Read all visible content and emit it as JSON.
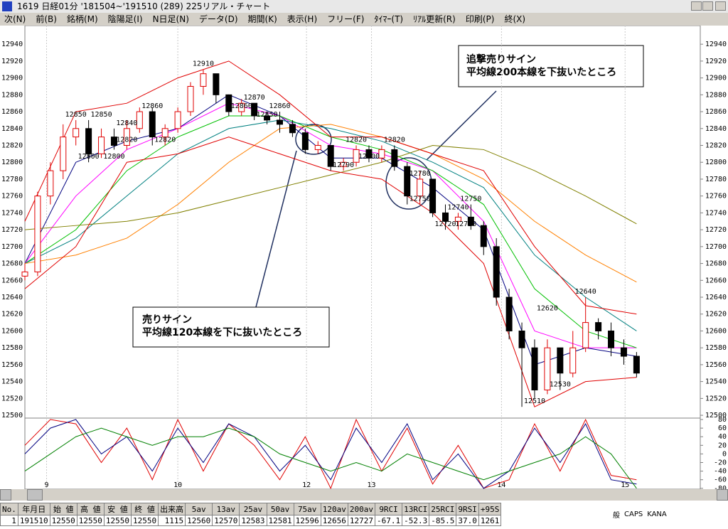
{
  "window": {
    "title": "1619 日経01分 '181504~'191510 (289)  225リアル・チャート"
  },
  "menu": [
    "次(N)",
    "前(B)",
    "銘柄(M)",
    "陰陽足(I)",
    "N日足(N)",
    "データ(D)",
    "期間(K)",
    "表示(H)",
    "フリー(F)",
    "ﾀｲﾏｰ(T)",
    "ﾘｱﾙ更新(R)",
    "印刷(P)",
    "終(X)"
  ],
  "chart_data": [
    {
      "type": "candlestick",
      "xlim": [
        0,
        53
      ],
      "xticks": [
        {
          "value": 1.7,
          "label": "9"
        },
        {
          "value": 12,
          "label": "10"
        },
        {
          "value": 22.1,
          "label": "12"
        },
        {
          "value": 27.2,
          "label": "13"
        },
        {
          "value": 37.4,
          "label": "14"
        },
        {
          "value": 47.1,
          "label": "15"
        }
      ],
      "ylim": [
        12495,
        12957
      ],
      "yticks": [
        12500,
        12520,
        12540,
        12560,
        12580,
        12600,
        12620,
        12640,
        12660,
        12680,
        12700,
        12720,
        12740,
        12760,
        12780,
        12800,
        12820,
        12840,
        12860,
        12880,
        12900,
        12920,
        12940
      ],
      "grid": "x",
      "up_color": "#e00000",
      "down_color": "#000000",
      "open": [
        12665,
        12670,
        12760,
        12790,
        12830,
        12840,
        12810,
        12830,
        12820,
        12840,
        12860,
        12830,
        12840,
        12860,
        12890,
        12905,
        12880,
        12860,
        12870,
        12855,
        12850,
        12845,
        12835,
        12815,
        12820,
        12795,
        12800,
        12815,
        12805,
        12815,
        12795,
        12760,
        12780,
        12740,
        12730,
        12735,
        12725,
        12700,
        12640,
        12600,
        12580,
        12530,
        12580,
        12550,
        12580,
        12610,
        12600,
        12580,
        12570
      ],
      "high": [
        12680,
        12765,
        12800,
        12845,
        12850,
        12850,
        12840,
        12840,
        12850,
        12865,
        12865,
        12845,
        12865,
        12895,
        12910,
        12905,
        12880,
        12875,
        12870,
        12860,
        12860,
        12850,
        12840,
        12825,
        12820,
        12805,
        12820,
        12820,
        12820,
        12820,
        12800,
        12790,
        12780,
        12750,
        12740,
        12750,
        12730,
        12710,
        12650,
        12610,
        12590,
        12590,
        12580,
        12600,
        12640,
        12615,
        12610,
        12590,
        12575
      ],
      "low": [
        12660,
        12665,
        12750,
        12780,
        12820,
        12800,
        12805,
        12815,
        12815,
        12835,
        12820,
        12820,
        12835,
        12855,
        12880,
        12870,
        12855,
        12855,
        12850,
        12845,
        12835,
        12830,
        12810,
        12810,
        12790,
        12790,
        12795,
        12800,
        12800,
        12790,
        12750,
        12750,
        12735,
        12720,
        12720,
        12720,
        12690,
        12630,
        12590,
        12510,
        12520,
        12525,
        12530,
        12545,
        12575,
        12590,
        12570,
        12560,
        12545
      ],
      "close": [
        12670,
        12760,
        12790,
        12830,
        12840,
        12810,
        12830,
        12820,
        12840,
        12860,
        12830,
        12840,
        12860,
        12890,
        12905,
        12880,
        12860,
        12870,
        12855,
        12850,
        12845,
        12835,
        12815,
        12820,
        12795,
        12800,
        12815,
        12805,
        12815,
        12795,
        12760,
        12780,
        12740,
        12730,
        12735,
        12725,
        12700,
        12640,
        12600,
        12580,
        12530,
        12580,
        12550,
        12580,
        12610,
        12600,
        12580,
        12570,
        12550
      ],
      "line_x": [
        0,
        4,
        8,
        12,
        16,
        20,
        24,
        28,
        32,
        36,
        40,
        44,
        48
      ],
      "series": [
        {
          "color": "#000080",
          "values": [
            12680,
            12800,
            12825,
            12840,
            12880,
            12855,
            12805,
            12805,
            12770,
            12720,
            12560,
            12580,
            12570
          ]
        },
        {
          "color": "#ff00ff",
          "values": [
            12680,
            12760,
            12815,
            12840,
            12870,
            12855,
            12820,
            12810,
            12790,
            12730,
            12600,
            12580,
            12580
          ]
        },
        {
          "color": "#00c000",
          "values": [
            12680,
            12720,
            12790,
            12830,
            12855,
            12855,
            12830,
            12815,
            12790,
            12750,
            12650,
            12600,
            12580
          ]
        },
        {
          "color": "#008080",
          "values": [
            12680,
            12710,
            12760,
            12810,
            12840,
            12850,
            12840,
            12825,
            12800,
            12770,
            12690,
            12640,
            12600
          ]
        },
        {
          "color": "#ff8000",
          "values": [
            12680,
            12690,
            12710,
            12750,
            12800,
            12840,
            12845,
            12830,
            12810,
            12780,
            12730,
            12690,
            12658
          ]
        },
        {
          "color": "#808000",
          "values": [
            12720,
            12725,
            12730,
            12740,
            12755,
            12770,
            12785,
            12800,
            12820,
            12815,
            12790,
            12760,
            12727
          ]
        },
        {
          "color": "#e00000",
          "values": [
            12730,
            12860,
            12870,
            12900,
            12920,
            12880,
            12830,
            12830,
            12810,
            12790,
            12700,
            12630,
            12620
          ]
        },
        {
          "color": "#e00000",
          "values": [
            12650,
            12700,
            12800,
            12810,
            12830,
            12810,
            12790,
            12780,
            12740,
            12680,
            12510,
            12540,
            12545
          ]
        }
      ],
      "price_labels": [
        {
          "index": 14,
          "value": 12910
        },
        {
          "index": 18,
          "value": 12870
        },
        {
          "index": 10,
          "value": 12860
        },
        {
          "index": 4,
          "value": 12850
        },
        {
          "index": 6,
          "value": 12850
        },
        {
          "index": 8,
          "value": 12840
        },
        {
          "index": 8,
          "value": 12820
        },
        {
          "index": 11,
          "value": 12820
        },
        {
          "index": 5,
          "value": 12800
        },
        {
          "index": 7,
          "value": 12800
        },
        {
          "index": 17,
          "value": 12860
        },
        {
          "index": 20,
          "value": 12860
        },
        {
          "index": 19,
          "value": 12850
        },
        {
          "index": 25,
          "value": 12790
        },
        {
          "index": 26,
          "value": 12820
        },
        {
          "index": 29,
          "value": 12820
        },
        {
          "index": 27,
          "value": 12800
        },
        {
          "index": 31,
          "value": 12780
        },
        {
          "index": 31,
          "value": 12750
        },
        {
          "index": 34,
          "value": 12740
        },
        {
          "index": 35,
          "value": 12750
        },
        {
          "index": 33,
          "value": 12720
        },
        {
          "index": 34.6,
          "value": 12720
        },
        {
          "index": 44,
          "value": 12640
        },
        {
          "index": 41,
          "value": 12620
        },
        {
          "index": 42,
          "value": 12530
        },
        {
          "index": 40,
          "value": 12510
        }
      ],
      "annotations": [
        {
          "lines": [
            "追撃売りサイン",
            "平均線200本線を下抜いたところ"
          ]
        },
        {
          "lines": [
            "売りサイン",
            "平均線120本線を下に抜いたところ"
          ]
        }
      ]
    },
    {
      "type": "line",
      "xlim": [
        0,
        53
      ],
      "ylim": [
        -82,
        85
      ],
      "yticks": [
        -80,
        -60,
        -40,
        -20,
        0,
        20,
        40,
        60,
        80
      ],
      "x": [
        0,
        2,
        4,
        6,
        8,
        10,
        12,
        14,
        16,
        18,
        20,
        22,
        24,
        26,
        28,
        30,
        32,
        34,
        36,
        38,
        40,
        42,
        44,
        46,
        48
      ],
      "series": [
        {
          "color": "#e00000",
          "values": [
            20,
            80,
            70,
            -20,
            60,
            -60,
            80,
            -40,
            70,
            20,
            -60,
            40,
            -80,
            80,
            -40,
            60,
            -70,
            20,
            -80,
            -60,
            70,
            -40,
            80,
            -50,
            -60
          ]
        },
        {
          "color": "#000080",
          "values": [
            0,
            60,
            80,
            0,
            40,
            -40,
            60,
            -20,
            70,
            40,
            -40,
            20,
            -60,
            60,
            -20,
            70,
            -60,
            0,
            -80,
            -40,
            60,
            -20,
            70,
            -60,
            -70
          ]
        },
        {
          "color": "#008000",
          "values": [
            -40,
            0,
            40,
            60,
            40,
            20,
            40,
            40,
            60,
            40,
            0,
            -20,
            -40,
            -20,
            -40,
            0,
            -20,
            -40,
            -60,
            -40,
            -20,
            0,
            40,
            0,
            -80
          ]
        }
      ]
    }
  ],
  "table": {
    "headers": [
      "No.",
      "年月日",
      "始 値",
      "高 値",
      "安 値",
      "終 値",
      "出来高",
      "5av",
      "13av",
      "25av",
      "50av",
      "75av",
      "120av",
      "200av",
      "9RCI",
      "13RCI",
      "25RCI",
      "9RSI",
      "+95S"
    ],
    "rows": [
      [
        "1",
        "191510",
        "12550",
        "12550",
        "12550",
        "12550",
        "1115",
        "12560",
        "12570",
        "12583",
        "12581",
        "12596",
        "12656",
        "12727",
        "-67.1",
        "-52.3",
        "-85.5",
        "37.0",
        "1261"
      ]
    ]
  },
  "status": {
    "tray": [
      "般",
      "CAPS",
      "KANA"
    ]
  }
}
